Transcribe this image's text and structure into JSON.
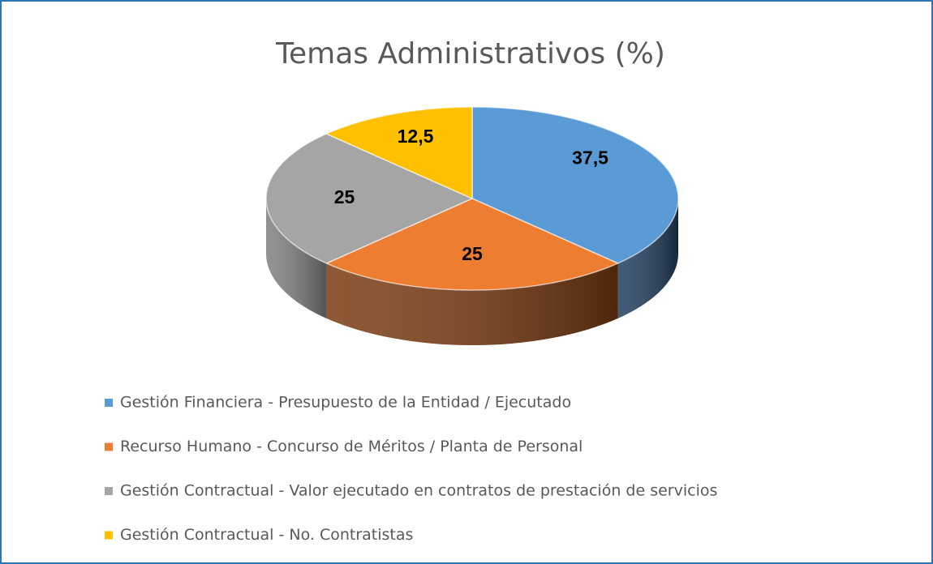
{
  "chart_data": {
    "type": "pie",
    "title": "Temas Administrativos (%)",
    "categories": [
      "Gestión Financiera - Presupuesto de la Entidad / Ejecutado",
      "Recurso Humano - Concurso de Méritos / Planta de Personal",
      "Gestión Contractual - Valor ejecutado en contratos de prestación de servicios",
      "Gestión Contractual - No. Contratistas"
    ],
    "values": [
      37.5,
      25,
      25,
      12.5
    ],
    "value_labels": [
      "37,5",
      "25",
      "25",
      "12,5"
    ],
    "colors": [
      "#5b9bd5",
      "#ed7d31",
      "#a5a5a5",
      "#ffc000"
    ],
    "side_colors": [
      "#203d5c",
      "#7a3a10",
      "#7f7f7f",
      "#b38600"
    ],
    "legend": "bottom"
  }
}
